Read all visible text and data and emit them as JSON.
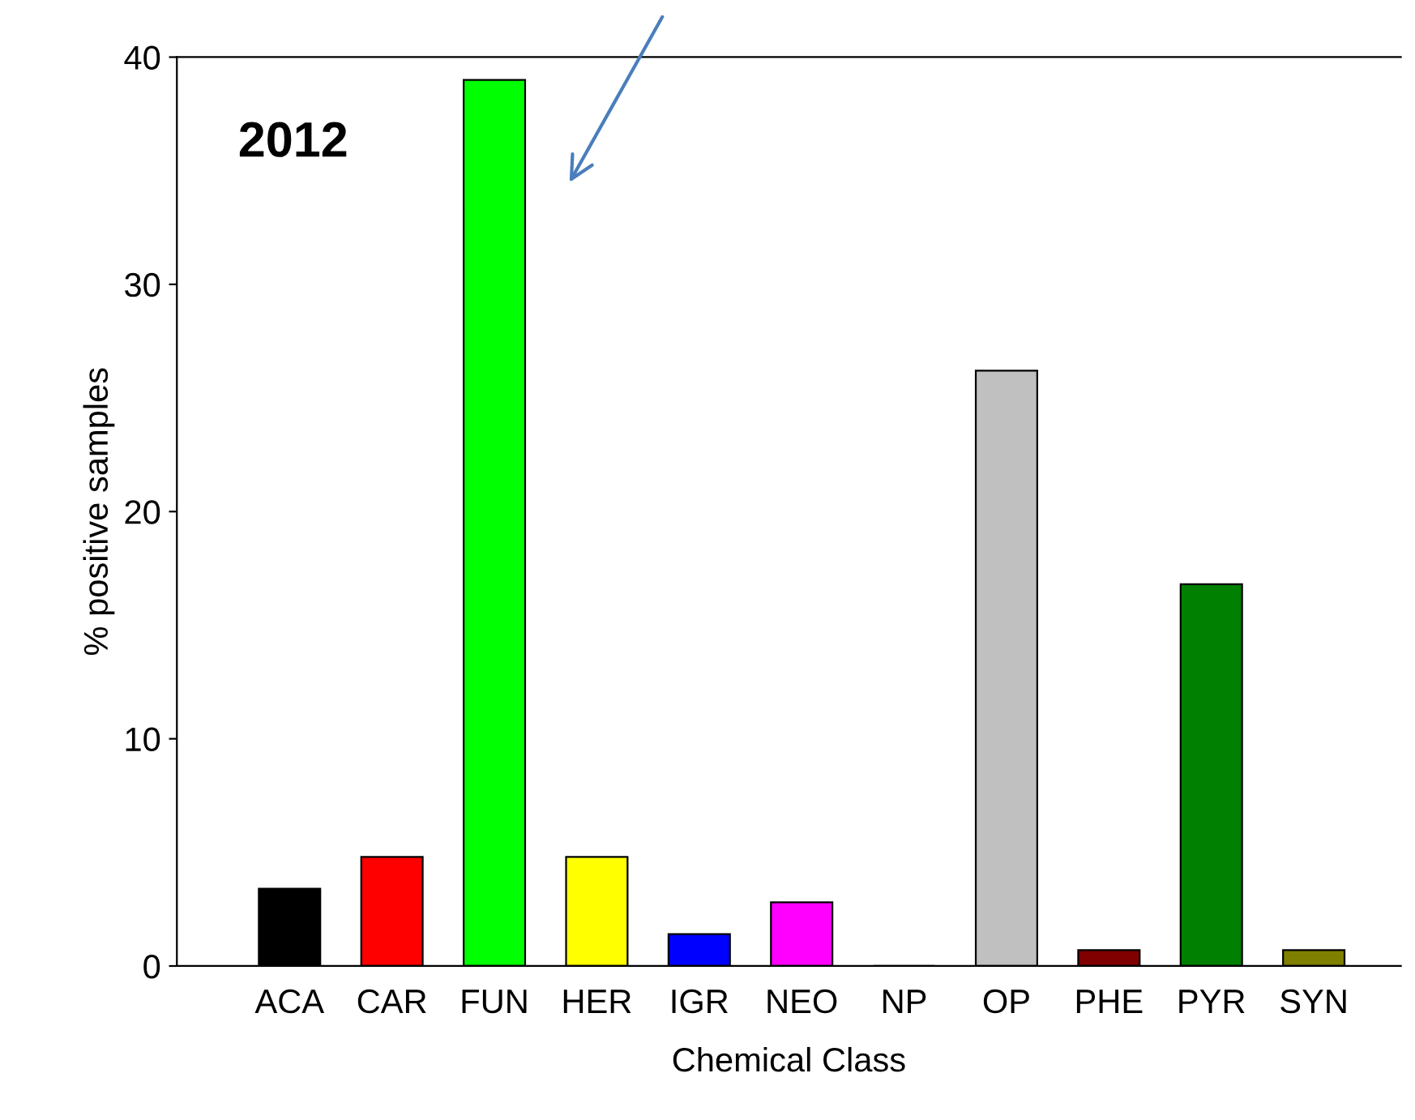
{
  "chart_data": {
    "type": "bar",
    "xlabel": "Chemical Class",
    "ylabel": "% positive samples",
    "annotations": [
      "2012"
    ],
    "categories": [
      "ACA",
      "CAR",
      "FUN",
      "HER",
      "IGR",
      "NEO",
      "NP",
      "OP",
      "PHE",
      "PYR",
      "SYN"
    ],
    "values": [
      3.4,
      4.8,
      39.0,
      4.8,
      1.4,
      2.8,
      0,
      26.2,
      0.7,
      16.8,
      0.7
    ],
    "colors": [
      "#000000",
      "#ff0000",
      "#00ff00",
      "#ffff00",
      "#0000ff",
      "#ff00ff",
      "#ffffff",
      "#c0c0c0",
      "#800000",
      "#008000",
      "#808000"
    ],
    "ylim": [
      0,
      40
    ],
    "yticks": [
      0,
      10,
      20,
      30,
      40
    ],
    "grid": false,
    "legend": false
  }
}
